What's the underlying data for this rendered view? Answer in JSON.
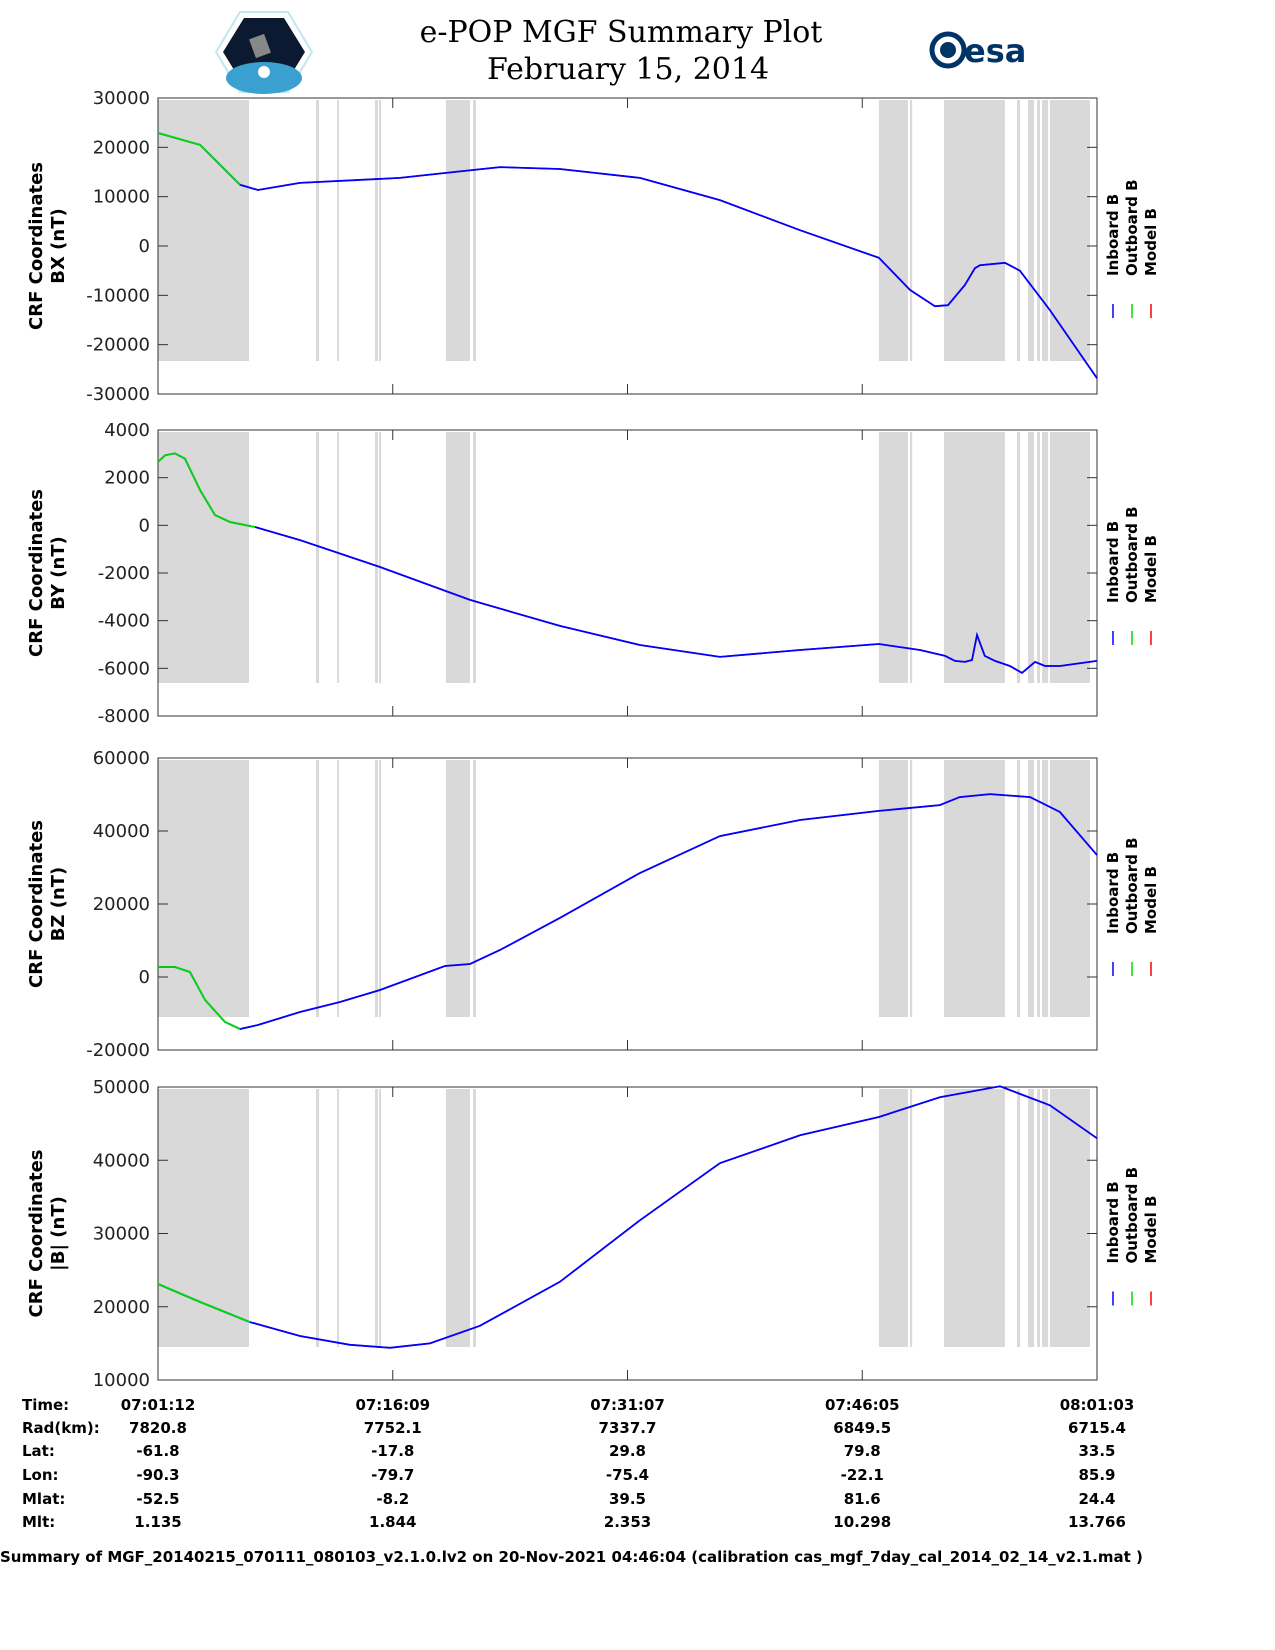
{
  "chart_data": {
    "type": "line",
    "title": "e-POP MGF Summary Plot",
    "subtitle": "February 15, 2014",
    "x_unit": "seconds since 07:01:12",
    "xlim": [
      0,
      3591
    ],
    "x_tick_labels": [
      "07:01:12",
      "07:16:09",
      "07:31:07",
      "07:46:05",
      "08:01:03"
    ],
    "legend": {
      "placement": "right",
      "entries": [
        {
          "name": "Inboard B",
          "color": "#0000ff"
        },
        {
          "name": "Outboard B",
          "color": "#00dd00"
        },
        {
          "name": "Model B",
          "color": "#ff0000"
        }
      ]
    },
    "gap_band_color": "#d9d9d9",
    "gap_bands": [
      [
        0,
        348
      ],
      [
        604,
        616
      ],
      [
        685,
        692
      ],
      [
        830,
        841
      ],
      [
        845,
        853
      ],
      [
        1101,
        1193
      ],
      [
        1205,
        1216
      ],
      [
        2757,
        2868
      ],
      [
        2876,
        2884
      ],
      [
        3006,
        3239
      ],
      [
        3285,
        3297
      ],
      [
        3327,
        3350
      ],
      [
        3362,
        3373
      ],
      [
        3381,
        3404
      ],
      [
        3411,
        3564
      ]
    ],
    "green_until": 380,
    "panels": [
      {
        "ylabel1": "CRF Coordinates",
        "ylabel2": "BX (nT)",
        "ylim": [
          -30000,
          30000
        ],
        "yticks": [
          -30000,
          -20000,
          -10000,
          0,
          10000,
          20000,
          30000
        ],
        "x": [
          0,
          161,
          314,
          382,
          543,
          925,
          1097,
          1308,
          1537,
          1843,
          2149,
          2455,
          2757,
          2876,
          2971,
          3021,
          3086,
          3124,
          3143,
          3239,
          3296,
          3411,
          3591
        ],
        "y": [
          22900,
          20500,
          12400,
          11350,
          12800,
          13800,
          14800,
          16000,
          15600,
          13800,
          9300,
          3200,
          -2400,
          -8900,
          -12200,
          -12000,
          -7900,
          -4500,
          -3900,
          -3400,
          -5000,
          -13000,
          -26800
        ]
      },
      {
        "ylabel1": "CRF Coordinates",
        "ylabel2": "BY (nT)",
        "ylim": [
          -8000,
          4000
        ],
        "yticks": [
          -8000,
          -6000,
          -4000,
          -2000,
          0,
          2000,
          4000
        ],
        "x": [
          0,
          27,
          65,
          103,
          161,
          218,
          275,
          371,
          543,
          849,
          1193,
          1537,
          1843,
          2149,
          2455,
          2757,
          2914,
          3010,
          3048,
          3086,
          3113,
          3132,
          3162,
          3201,
          3258,
          3304,
          3354,
          3392,
          3449,
          3591
        ],
        "y": [
          2660,
          2940,
          3020,
          2800,
          1480,
          430,
          140,
          -70,
          -620,
          -1750,
          -3130,
          -4220,
          -5020,
          -5520,
          -5230,
          -4980,
          -5230,
          -5480,
          -5690,
          -5730,
          -5650,
          -4600,
          -5480,
          -5690,
          -5900,
          -6190,
          -5730,
          -5900,
          -5900,
          -5690
        ]
      },
      {
        "ylabel1": "CRF Coordinates",
        "ylabel2": "BZ (nT)",
        "ylim": [
          -20000,
          60000
        ],
        "yticks": [
          -20000,
          0,
          20000,
          40000,
          60000
        ],
        "x": [
          0,
          65,
          122,
          180,
          256,
          314,
          382,
          543,
          696,
          849,
          1097,
          1193,
          1308,
          1537,
          1843,
          2149,
          2455,
          2757,
          2990,
          3066,
          3182,
          3335,
          3449,
          3591
        ],
        "y": [
          2740,
          2740,
          1370,
          -6300,
          -12300,
          -14250,
          -13150,
          -9600,
          -6850,
          -3560,
          3000,
          3560,
          7400,
          16200,
          28500,
          38600,
          43000,
          45500,
          47100,
          49300,
          50100,
          49300,
          45200,
          33400
        ]
      },
      {
        "ylabel1": "CRF Coordinates",
        "ylabel2": "|B| (nT)",
        "ylim": [
          10000,
          50000
        ],
        "yticks": [
          10000,
          20000,
          30000,
          40000,
          50000
        ],
        "x": [
          0,
          161,
          352,
          543,
          734,
          887,
          1040,
          1231,
          1537,
          1843,
          2149,
          2455,
          2757,
          2990,
          3220,
          3411,
          3591
        ],
        "y": [
          23100,
          20650,
          17900,
          16000,
          14800,
          14400,
          15000,
          17400,
          23400,
          31800,
          39600,
          43400,
          45900,
          48600,
          50100,
          47500,
          43000
        ]
      }
    ]
  },
  "table": {
    "row_labels": [
      "Time:",
      "Rad(km):",
      "Lat:",
      "Lon:",
      "Mlat:",
      "Mlt:"
    ],
    "columns": [
      [
        "07:01:12",
        "7820.8",
        "-61.8",
        "-90.3",
        "-52.5",
        "1.135"
      ],
      [
        "07:16:09",
        "7752.1",
        "-17.8",
        "-79.7",
        "-8.2",
        "1.844"
      ],
      [
        "07:31:07",
        "7337.7",
        "29.8",
        "-75.4",
        "39.5",
        "2.353"
      ],
      [
        "07:46:05",
        "6849.5",
        "79.8",
        "-22.1",
        "81.6",
        "10.298"
      ],
      [
        "08:01:03",
        "6715.4",
        "33.5",
        "85.9",
        "24.4",
        "13.766"
      ]
    ]
  },
  "footer": "Summary of MGF_20140215_070111_080103_v2.1.0.lv2 on 20-Nov-2021 04:46:04 (calibration cas_mgf_7day_cal_2014_02_14_v2.1.mat )",
  "logos": {
    "left": "CASSIOPE",
    "right": "esa"
  }
}
